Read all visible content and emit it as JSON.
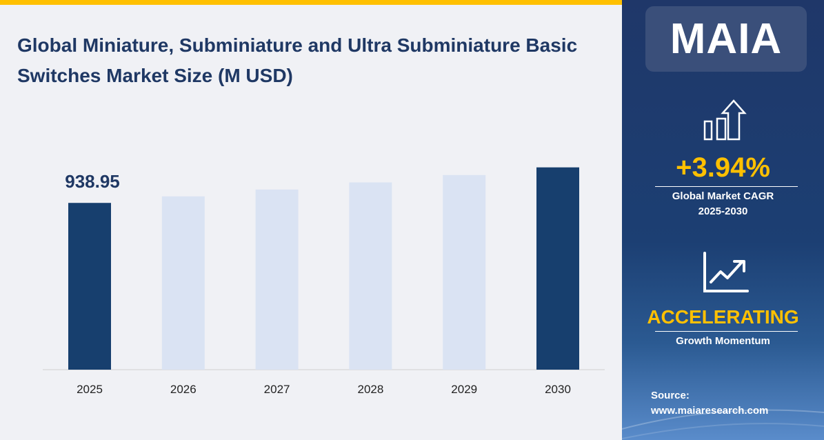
{
  "title": "Global Miniature, Subminiature and Ultra Subminiature Basic Switches Market Size (M USD)",
  "chart_data": {
    "type": "bar",
    "title": "Global Miniature, Subminiature and Ultra Subminiature Basic Switches Market Size (M USD)",
    "categories": [
      "2025",
      "2026",
      "2027",
      "2028",
      "2029",
      "2030"
    ],
    "values": [
      938.95,
      975.9,
      1014.4,
      1054.4,
      1095.9,
      1139.1
    ],
    "data_labels": [
      "938.95",
      "",
      "",
      "",
      "",
      ""
    ],
    "highlight": [
      true,
      false,
      false,
      false,
      false,
      true
    ],
    "colors": {
      "highlight": "#173f6e",
      "normal": "#dae3f3"
    },
    "ylim": [
      0,
      1200
    ],
    "grid": false,
    "xlabel": "",
    "ylabel": ""
  },
  "sidebar": {
    "logo": "MAIA",
    "cagr_value": "+3.94%",
    "cagr_label_1": "Global Market CAGR",
    "cagr_label_2": "2025-2030",
    "momentum_value": "ACCELERATING",
    "momentum_label": "Growth Momentum",
    "source_label": "Source:",
    "source_url": "www.maiaresearch.com",
    "icons": [
      "bar-chart-up-arrow-icon",
      "line-chart-trend-icon"
    ],
    "accent": "#FFC000"
  }
}
